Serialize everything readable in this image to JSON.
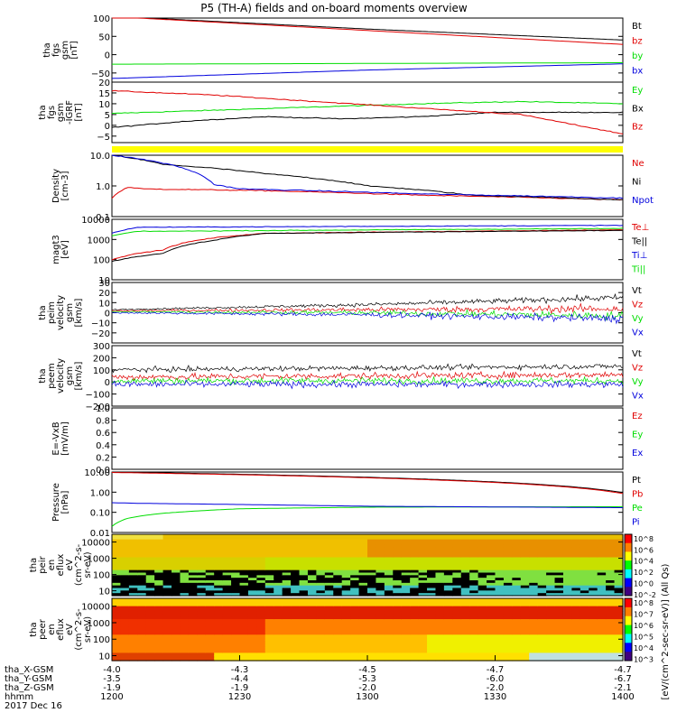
{
  "title": "P5 (TH-A) fields and on-board moments overview",
  "xaxis": {
    "rows": [
      {
        "label": "tha_X-GSM",
        "values": [
          "-4.0",
          "-4.3",
          "-4.5",
          "-4.7",
          "-4.7"
        ]
      },
      {
        "label": "tha_Y-GSM",
        "values": [
          "-3.5",
          "-4.4",
          "-5.3",
          "-6.0",
          "-6.7"
        ]
      },
      {
        "label": "tha_Z-GSM",
        "values": [
          "-1.9",
          "-1.9",
          "-2.0",
          "-2.0",
          "-2.1"
        ]
      },
      {
        "label": "hhmm",
        "values": [
          "1200",
          "1230",
          "1300",
          "1330",
          "1400"
        ]
      }
    ],
    "date": "2017 Dec 16"
  },
  "chart_data": [
    {
      "type": "line",
      "id": "fgs-gsm-rng",
      "ylabel": [
        "tha",
        "fgs",
        "gsm",
        "[nT]"
      ],
      "ylim": [
        -75,
        100
      ],
      "yticks": [
        -50,
        0,
        50,
        100
      ],
      "yticklabels": [
        "−50",
        "0",
        "50",
        "100"
      ],
      "series": [
        {
          "name": "Bt",
          "color": "#000000",
          "x": [
            0,
            0.5,
            1
          ],
          "y": [
            105,
            70,
            40
          ]
        },
        {
          "name": "bz",
          "color": "#e00000",
          "x": [
            0,
            0.5,
            1
          ],
          "y": [
            104,
            66,
            28
          ]
        },
        {
          "name": "by",
          "color": "#00dd00",
          "x": [
            0,
            0.5,
            1
          ],
          "y": [
            -26,
            -24,
            -22
          ]
        },
        {
          "name": "bx",
          "color": "#0000dd",
          "x": [
            0,
            0.5,
            1
          ],
          "y": [
            -65,
            -42,
            -25
          ]
        }
      ]
    },
    {
      "type": "line",
      "id": "fgs-gsm-dip",
      "ylabel": [
        "tha",
        "fgs",
        "gsm",
        "-IGRF",
        "[nT]"
      ],
      "ylim": [
        -8,
        20
      ],
      "yticks": [
        -5,
        0,
        5,
        10,
        15,
        20
      ],
      "yticklabels": [
        "−5",
        "0",
        "5",
        "10",
        "15",
        "20"
      ],
      "series": [
        {
          "name": "Ey",
          "color": "#00dd00",
          "x": [
            0,
            0.2,
            0.4,
            0.6,
            0.8,
            1
          ],
          "y": [
            5.5,
            7,
            8.5,
            10,
            11,
            10
          ]
        },
        {
          "name": "Bx",
          "color": "#000000",
          "x": [
            0,
            0.15,
            0.3,
            0.45,
            0.6,
            0.75,
            0.9,
            1
          ],
          "y": [
            -1,
            2,
            4,
            3,
            4,
            6,
            6,
            6
          ]
        },
        {
          "name": "Bz",
          "color": "#e00000",
          "x": [
            0,
            0.2,
            0.4,
            0.6,
            0.8,
            1
          ],
          "y": [
            16,
            14,
            11,
            8,
            5,
            -4
          ]
        }
      ]
    },
    {
      "type": "line",
      "id": "density",
      "scale": "log",
      "ylabel": [
        "Density",
        "[cm-3]"
      ],
      "ylim": [
        0.1,
        10.0
      ],
      "yticks": [
        0.1,
        1.0,
        10.0
      ],
      "yticklabels": [
        "0.1",
        "1.0",
        "10.0"
      ],
      "series": [
        {
          "name": "Ne",
          "color": "#e00000",
          "x": [
            0,
            0.03,
            0.06,
            0.3,
            0.6,
            1
          ],
          "y": [
            0.4,
            0.9,
            0.8,
            0.7,
            0.5,
            0.35
          ]
        },
        {
          "name": "Ni",
          "color": "#000000",
          "x": [
            0,
            0.1,
            0.3,
            0.5,
            0.7,
            1
          ],
          "y": [
            10,
            5,
            2.5,
            1.0,
            0.5,
            0.35
          ]
        },
        {
          "name": "Npot",
          "color": "#0000dd",
          "x": [
            0,
            0.2,
            0.25,
            0.6,
            1
          ],
          "y": [
            10,
            1.1,
            0.8,
            0.55,
            0.4
          ]
        }
      ]
    },
    {
      "type": "line",
      "id": "temperature",
      "scale": "log",
      "ylabel": [
        "magt3",
        "[eV]"
      ],
      "ylim": [
        10,
        10000
      ],
      "yticks": [
        10,
        100,
        1000,
        10000
      ],
      "yticklabels": [
        "10",
        "100",
        "1000",
        "10000"
      ],
      "series": [
        {
          "name": "Te⊥",
          "color": "#e00000",
          "x": [
            0,
            0.1,
            0.2,
            0.3,
            1
          ],
          "y": [
            100,
            300,
            1200,
            2000,
            3000
          ]
        },
        {
          "name": "Te||",
          "color": "#000000",
          "x": [
            0,
            0.1,
            0.2,
            0.3,
            1
          ],
          "y": [
            80,
            200,
            900,
            2000,
            2800
          ]
        },
        {
          "name": "Ti⊥",
          "color": "#0000dd",
          "x": [
            0,
            0.05,
            1
          ],
          "y": [
            2000,
            4000,
            5000
          ]
        },
        {
          "name": "Ti||",
          "color": "#00dd00",
          "x": [
            0,
            0.05,
            1
          ],
          "y": [
            1500,
            2500,
            3500
          ]
        }
      ]
    },
    {
      "type": "line",
      "id": "peim-velocity",
      "ylabel": [
        "tha",
        "peim",
        "velocity",
        "gsm",
        "[km/s]"
      ],
      "ylim": [
        -30,
        30
      ],
      "yticks": [
        -20,
        -10,
        0,
        10,
        20,
        30
      ],
      "yticklabels": [
        "−20",
        "−10",
        "0",
        "10",
        "20",
        "30"
      ],
      "series": [
        {
          "name": "Vt",
          "color": "#000000",
          "x": [
            0,
            0.5,
            1
          ],
          "y": [
            3,
            8,
            15
          ]
        },
        {
          "name": "Vz",
          "color": "#e00000",
          "x": [
            0,
            0.5,
            1
          ],
          "y": [
            2,
            3,
            4
          ]
        },
        {
          "name": "Vy",
          "color": "#00dd00",
          "x": [
            0,
            0.5,
            1
          ],
          "y": [
            1,
            0,
            -3
          ]
        },
        {
          "name": "Vx",
          "color": "#0000dd",
          "x": [
            0,
            0.5,
            1
          ],
          "y": [
            0,
            -2,
            -6
          ]
        }
      ]
    },
    {
      "type": "line",
      "id": "peem-velocity",
      "ylabel": [
        "tha",
        "peem",
        "velocity",
        "gsm",
        "[km/s]"
      ],
      "ylim": [
        -200,
        300
      ],
      "yticks": [
        -200,
        -100,
        0,
        100,
        200,
        300
      ],
      "yticklabels": [
        "−200",
        "−100",
        "0",
        "100",
        "200",
        "300"
      ],
      "series": [
        {
          "name": "Vt",
          "color": "#000000",
          "x": [
            0,
            1
          ],
          "y": [
            100,
            130
          ]
        },
        {
          "name": "Vz",
          "color": "#e00000",
          "x": [
            0,
            1
          ],
          "y": [
            40,
            60
          ]
        },
        {
          "name": "Vy",
          "color": "#00dd00",
          "x": [
            0,
            1
          ],
          "y": [
            10,
            10
          ]
        },
        {
          "name": "Vx",
          "color": "#0000dd",
          "x": [
            0,
            1
          ],
          "y": [
            -20,
            -20
          ]
        }
      ]
    },
    {
      "type": "line",
      "id": "e-field",
      "ylabel": [
        "E=-VxB",
        "[mV/m]"
      ],
      "ylim": [
        0,
        1
      ],
      "yticks": [
        0,
        0.2,
        0.4,
        0.6,
        0.8,
        1.0
      ],
      "yticklabels": [
        "0.0",
        "0.2",
        "0.4",
        "0.6",
        "0.8",
        "1.0"
      ],
      "series": [
        {
          "name": "Ez",
          "color": "#e00000",
          "x": [],
          "y": []
        },
        {
          "name": "Ey",
          "color": "#00dd00",
          "x": [],
          "y": []
        },
        {
          "name": "Ex",
          "color": "#0000dd",
          "x": [],
          "y": []
        }
      ]
    },
    {
      "type": "line",
      "id": "pressure",
      "scale": "log",
      "ylabel": [
        "Pressure",
        "[nPa]"
      ],
      "ylim": [
        0.01,
        10
      ],
      "yticks": [
        0.01,
        0.1,
        1.0,
        10.0
      ],
      "yticklabels": [
        "0.01",
        "0.10",
        "1.00",
        "10.00"
      ],
      "series": [
        {
          "name": "Pt",
          "color": "#000000",
          "x": [
            0,
            1
          ],
          "y": [
            10,
            0.95
          ]
        },
        {
          "name": "Pb",
          "color": "#e00000",
          "x": [
            0,
            1
          ],
          "y": [
            9.5,
            0.85
          ]
        },
        {
          "name": "Pe",
          "color": "#00dd00",
          "x": [
            0,
            0.03,
            0.1,
            0.25,
            0.5,
            1
          ],
          "y": [
            0.02,
            0.05,
            0.09,
            0.15,
            0.18,
            0.19
          ]
        },
        {
          "name": "Pi",
          "color": "#0000dd",
          "x": [
            0,
            0.05,
            0.5,
            1
          ],
          "y": [
            0.3,
            0.28,
            0.2,
            0.17
          ]
        }
      ]
    },
    {
      "type": "heatmap",
      "id": "peir-spectrogram",
      "scale": "log",
      "ylabel": [
        "tha",
        "peir",
        "en",
        "eflux",
        "eV",
        "(cm^2-s-",
        "sr-eV)"
      ],
      "ylim": [
        5,
        30000
      ],
      "yticks": [
        10,
        100,
        1000,
        10000
      ],
      "yticklabels": [
        "10",
        "100",
        "1000",
        "10000"
      ],
      "description": "ion energy flux, black (no data) at low energies early in interval"
    },
    {
      "type": "heatmap",
      "id": "peer-spectrogram",
      "scale": "log",
      "ylabel": [
        "tha",
        "peer",
        "en",
        "eflux",
        "eV",
        "(cm^2-s-",
        "sr-eV)"
      ],
      "ylim": [
        5,
        30000
      ],
      "yticks": [
        10,
        100,
        1000,
        10000
      ],
      "yticklabels": [
        "10",
        "100",
        "1000",
        "10000"
      ]
    }
  ],
  "colorbar": {
    "label": "[eV/(cm^2-sec-sr-eV)] (All Qs)",
    "ticks_top": [
      "10^8",
      "10^6",
      "10^4",
      "10^2",
      "10^0",
      "10^-2"
    ],
    "ticks_bottom": [
      "10^8",
      "10^7",
      "10^6",
      "10^5",
      "10^4",
      "10^3"
    ]
  },
  "colors": {
    "black": "#000000",
    "red": "#e00000",
    "green": "#00dd00",
    "blue": "#0000dd",
    "yellow": "#ffff00"
  }
}
